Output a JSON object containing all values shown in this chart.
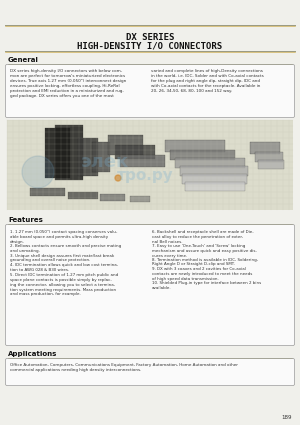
{
  "title_line1": "DX SERIES",
  "title_line2": "HIGH-DENSITY I/O CONNECTORS",
  "bg_color": "#f0f0eb",
  "section_general_title": "General",
  "general_text_col1": "DX series high-density I/O connectors with below com-\nmon are perfect for tomorrow's miniaturized electronics\ndevices. True axis 1.27 mm (0.050\") interconnect design\nensures positive locking, effortless coupling, Hi-ReRal\nprotection and EMI reduction in a miniaturized and rug-\nged package. DX series offers you one of the most",
  "general_text_col2": "varied and complete lines of high-Density connections\nin the world, i.e. IDC, Solder and with Co-axial contacts\nfor the plug and right angle dip, straight dip, IDC and\nwith Co-axial contacts for the receptacle. Available in\n20, 26, 34,50, 68, 80, 100 and 152 way.",
  "section_features_title": "Features",
  "features_col1": [
    "1.27 mm (0.050\") contact spacing conserves valu-\nable board space and permits ultra-high density\ndesign.",
    "Bellows contacts ensure smooth and precise mating\nand unmating.",
    "Unique shell design assures first mate/last break\ngrounding and overall noise protection.",
    "IDC termination allows quick and low cost termina-\ntion to AWG 028 & B30 wires.",
    "Direct IDC termination of 1.27 mm pitch public and\nspace plane contacts is possible simply by replac-\ning the connector, allowing you to select a termina-\ntion system meeting requirements. Mass production\nand mass production, for example."
  ],
  "features_col2": [
    "Backshell and receptacle shell are made of Die-\ncast alloy to reduce the penetration of exter-\nnal Bell noises.",
    "Easy to use 'One-Touch' and 'Screw' locking\nmechanism and assure quick and easy positive dis-\ncures every time.",
    "Termination method is available in IDC, Soldering,\nRight Angle D or Straight D-clip and SMT.",
    "DX with 3 coaxes and 2 cavities for Co-axial\ncontacts are newly introduced to meet the needs\nof high speed data transmission.",
    "Shielded Plug-in type for interface between 2 bins\navailable."
  ],
  "section_applications_title": "Applications",
  "applications_text": "Office Automation, Computers, Communications Equipment, Factory Automation, Home Automation and other\ncommercial applications needing high density interconnections.",
  "page_number": "189",
  "line_color_main": "#999980",
  "line_color_accent": "#c8a030",
  "title_color": "#111111",
  "section_title_color": "#111111",
  "body_text_color": "#333333",
  "box_border_color": "#999999"
}
